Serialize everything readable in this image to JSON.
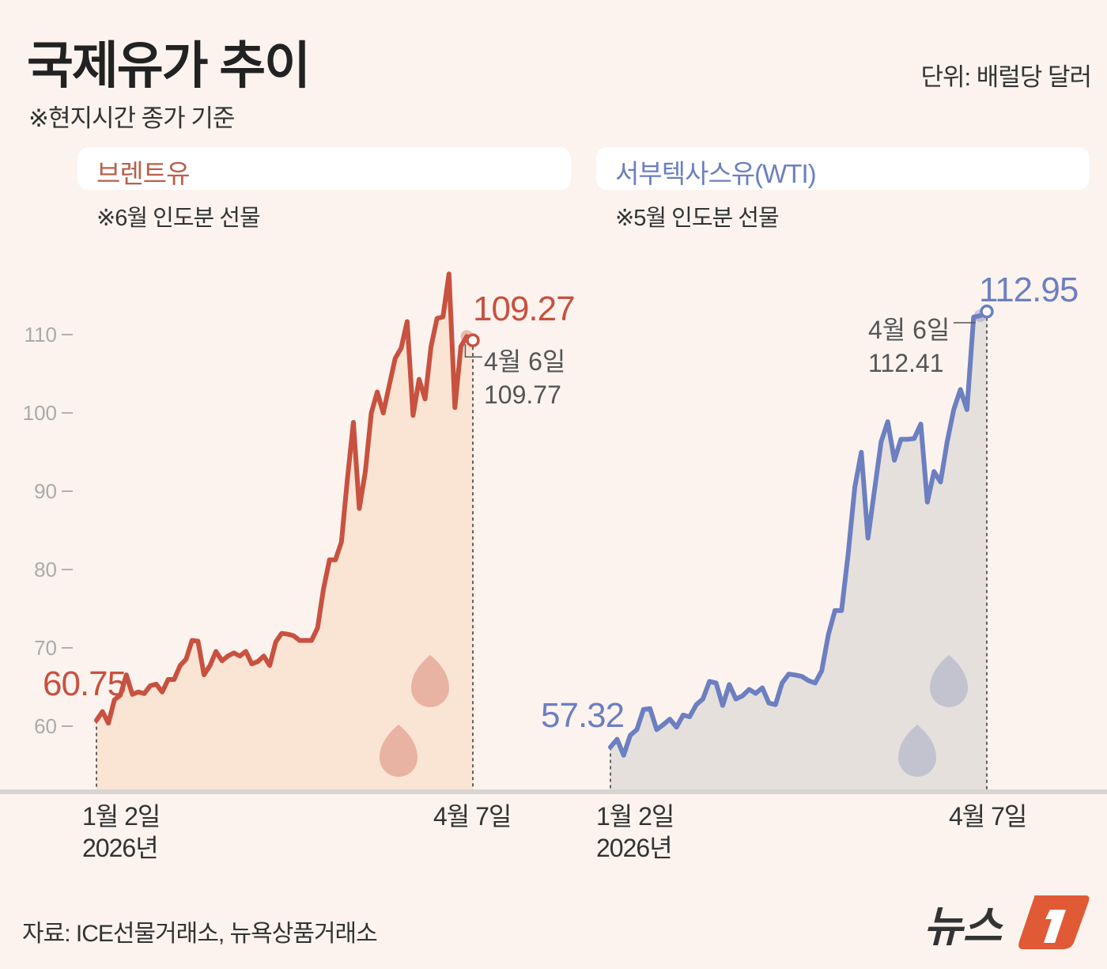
{
  "title": "국제유가 추이",
  "subtitle": "※현지시간 종가 기준",
  "unit": "단위: 배럴당 달러",
  "source": "자료: ICE선물거래소, 뉴욕상품거래소",
  "logo": "뉴스1",
  "chart_data": [
    {
      "type": "area",
      "title": "브렌트유",
      "note": "※6월 인도분 선물",
      "color": "#c8513f",
      "fill": "#fae4d4",
      "yticks": [
        60,
        70,
        80,
        90,
        100,
        110
      ],
      "ytick_labels": [
        "60",
        "70",
        "80",
        "90",
        "100",
        "110"
      ],
      "x_start_label": [
        "1월 2일",
        "2026년"
      ],
      "x_end_label": "4월 7일",
      "start_value_label": "60.75",
      "end_value_label": "109.27",
      "annotation": {
        "date": "4월 6일",
        "value": "109.77"
      },
      "values": [
        60.75,
        61.86,
        60.37,
        63.36,
        63.96,
        66.56,
        64.06,
        64.36,
        64.16,
        65.16,
        65.36,
        64.36,
        65.96,
        65.96,
        67.75,
        68.55,
        70.95,
        70.85,
        66.56,
        67.75,
        69.55,
        68.35,
        68.95,
        69.35,
        68.95,
        69.55,
        67.95,
        68.25,
        68.95,
        67.75,
        70.75,
        71.85,
        71.75,
        71.55,
        70.95,
        70.95,
        70.95,
        72.54,
        77.53,
        81.23,
        81.23,
        83.52,
        91.5,
        98.79,
        87.8,
        92.5,
        99.99,
        102.68,
        99.99,
        103.48,
        106.97,
        108.27,
        111.67,
        99.69,
        104.28,
        101.78,
        108.47,
        112.06,
        112.26,
        117.75,
        100.69,
        108.5,
        109.77,
        109.27
      ]
    },
    {
      "type": "area",
      "title": "서부텍사스유(WTI)",
      "note": "※5월 인도분 선물",
      "color": "#6c7fc0",
      "fill": "#e6e0dd",
      "x_start_label": [
        "1월 2일",
        "2026년"
      ],
      "x_end_label": "4월 7일",
      "start_value_label": "57.32",
      "end_value_label": "112.95",
      "annotation": {
        "date": "4월 6일",
        "value": "112.41"
      },
      "values": [
        57.32,
        58.33,
        56.28,
        58.84,
        59.56,
        62.13,
        62.23,
        59.56,
        60.18,
        60.9,
        59.87,
        61.41,
        61.2,
        62.75,
        63.46,
        65.72,
        65.52,
        62.64,
        65.31,
        63.46,
        63.87,
        64.69,
        64.18,
        64.9,
        62.95,
        62.75,
        65.52,
        66.65,
        66.54,
        66.34,
        65.82,
        65.52,
        67.06,
        71.68,
        74.76,
        74.76,
        81.94,
        90.47,
        94.98,
        84.0,
        90.16,
        96.32,
        98.88,
        93.96,
        96.63,
        96.63,
        96.73,
        98.58,
        88.62,
        92.52,
        91.18,
        96.32,
        100.42,
        102.99,
        100.42,
        112.23,
        112.41,
        112.95
      ]
    }
  ]
}
